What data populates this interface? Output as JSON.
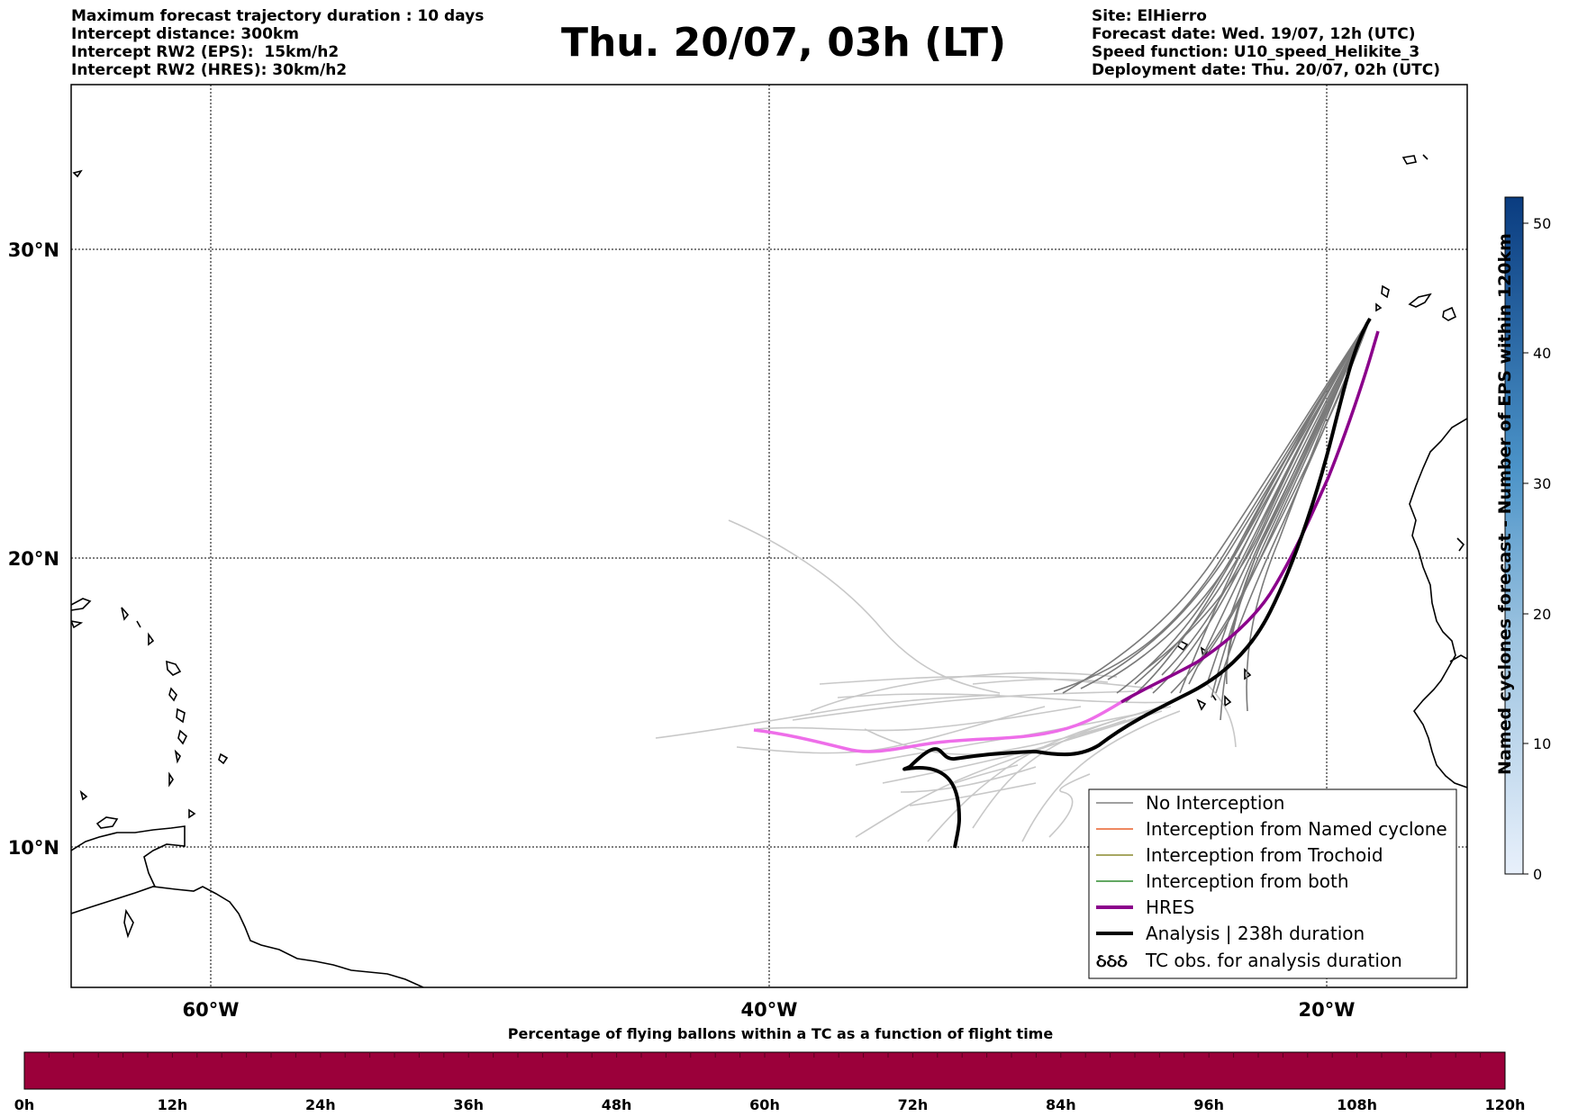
{
  "header_left": {
    "line1": "Maximum forecast trajectory duration : 10 days",
    "line2": "Intercept distance: 300km",
    "line3": "Intercept RW2 (EPS):  15km/h2",
    "line4": "Intercept RW2 (HRES): 30km/h2"
  },
  "title": "Thu. 20/07, 03h (LT)",
  "header_right": {
    "line1": "Site: ElHierro",
    "line2": "Forecast date: Wed. 19/07, 12h (UTC)",
    "line3": "Speed function: U10_speed_Helikite_3",
    "line4": "Deployment date: Thu. 20/07, 02h (UTC)"
  },
  "map": {
    "lat_labels": [
      "30°N",
      "20°N",
      "10°N"
    ],
    "lon_labels": [
      "60°W",
      "40°W",
      "20°W"
    ],
    "legend": {
      "items": [
        {
          "label": "No Interception",
          "color": "#808080"
        },
        {
          "label": "Interception from Named cyclone",
          "color": "#e8602c"
        },
        {
          "label": "Interception from Trochoid",
          "color": "#8a8a2e"
        },
        {
          "label": "Interception from both",
          "color": "#2e8b2e"
        },
        {
          "label": "HRES",
          "color": "#8b008b"
        },
        {
          "label": "Analysis | 238h duration",
          "color": "#000000"
        },
        {
          "label": "TC obs. for analysis duration",
          "color": "#000000"
        }
      ],
      "tc_symbol": "ઠઠઠ"
    },
    "colors": {
      "eps_tracks": "#7a7a7a",
      "eps_tracks_faded": "#c8c8c8",
      "hres": "#8b008b",
      "hres_faded": "#ee6ee9",
      "analysis": "#000000"
    }
  },
  "colorbar": {
    "title": "Named cyclones forecast - Number of EPS within 120km",
    "ticks": [
      "0",
      "10",
      "20",
      "30",
      "40",
      "50"
    ],
    "range": [
      0,
      52
    ],
    "color_low": "#e8f0fb",
    "color_high": "#0a3c80"
  },
  "progress_bar": {
    "title": "Percentage of flying ballons within a TC as a function of flight time",
    "ticks": [
      "0h",
      "12h",
      "24h",
      "36h",
      "48h",
      "60h",
      "72h",
      "84h",
      "96h",
      "108h",
      "120h"
    ],
    "fill_color": "#9b003a"
  }
}
